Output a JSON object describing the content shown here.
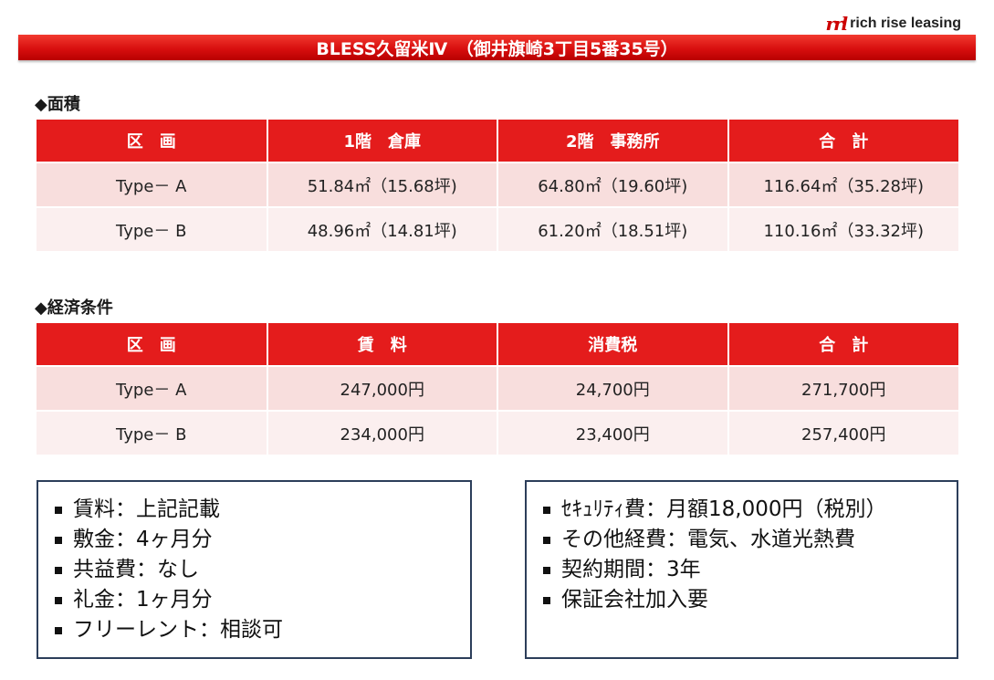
{
  "header": {
    "logo_mark": "rrl",
    "logo_text": "rich rise leasing",
    "title": "BLESS久留米Ⅳ　（御井旗崎3丁目5番35号）"
  },
  "area": {
    "section_title": "◆面積",
    "columns": [
      "区　画",
      "1階　倉庫",
      "2階　事務所",
      "合　計"
    ],
    "rows": [
      [
        "Type－ A",
        "51.84㎡（15.68坪)",
        "64.80㎡（19.60坪)",
        "116.64㎡（35.28坪)"
      ],
      [
        "Type－ B",
        "48.96㎡（14.81坪)",
        "61.20㎡（18.51坪)",
        "110.16㎡（33.32坪)"
      ]
    ]
  },
  "economics": {
    "section_title": "◆経済条件",
    "columns": [
      "区　画",
      "賃　料",
      "消費税",
      "合　計"
    ],
    "rows": [
      [
        "Type－ A",
        "247,000円",
        "24,700円",
        "271,700円"
      ],
      [
        "Type－ B",
        "234,000円",
        "23,400円",
        "257,400円"
      ]
    ]
  },
  "left_notes": [
    "賃料：上記記載",
    "敷金：4ヶ月分",
    "共益費：なし",
    "礼金：1ヶ月分",
    "フリーレント：相談可"
  ],
  "right_notes": [
    "ｾｷｭﾘﾃｨ費：月額18,000円（税別）",
    "その他経費：電気、水道光熱費",
    "契約期間：3年",
    "保証会社加入要"
  ]
}
